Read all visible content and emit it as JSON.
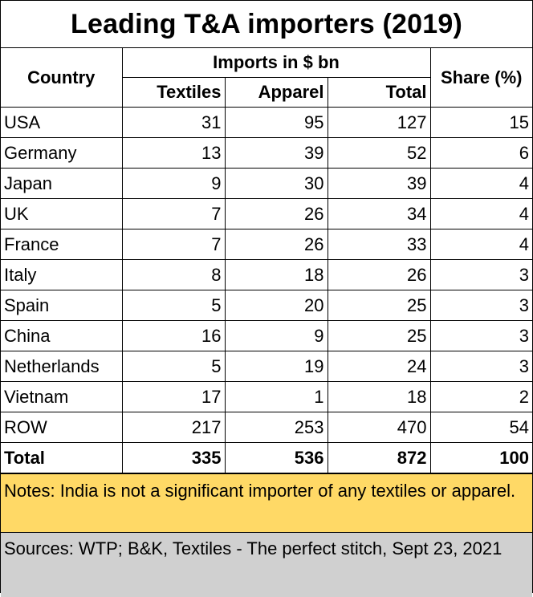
{
  "chart_data": {
    "type": "table",
    "title": "Leading T&A importers (2019)",
    "header": {
      "country": "Country",
      "imports_group": "Imports in $ bn",
      "textiles": "Textiles",
      "apparel": "Apparel",
      "total": "Total",
      "share": "Share (%)"
    },
    "rows": [
      {
        "country": "USA",
        "textiles": "31",
        "apparel": "95",
        "total": "127",
        "share": "15"
      },
      {
        "country": "Germany",
        "textiles": "13",
        "apparel": "39",
        "total": "52",
        "share": "6"
      },
      {
        "country": "Japan",
        "textiles": "9",
        "apparel": "30",
        "total": "39",
        "share": "4"
      },
      {
        "country": "UK",
        "textiles": "7",
        "apparel": "26",
        "total": "34",
        "share": "4"
      },
      {
        "country": "France",
        "textiles": "7",
        "apparel": "26",
        "total": "33",
        "share": "4"
      },
      {
        "country": "Italy",
        "textiles": "8",
        "apparel": "18",
        "total": "26",
        "share": "3"
      },
      {
        "country": "Spain",
        "textiles": "5",
        "apparel": "20",
        "total": "25",
        "share": "3"
      },
      {
        "country": "China",
        "textiles": "16",
        "apparel": "9",
        "total": "25",
        "share": "3"
      },
      {
        "country": "Netherlands",
        "textiles": "5",
        "apparel": "19",
        "total": "24",
        "share": "3"
      },
      {
        "country": "Vietnam",
        "textiles": "17",
        "apparel": "1",
        "total": "18",
        "share": "2"
      },
      {
        "country": "ROW",
        "textiles": "217",
        "apparel": "253",
        "total": "470",
        "share": "54"
      }
    ],
    "total_row": {
      "country": "Total",
      "textiles": "335",
      "apparel": "536",
      "total": "872",
      "share": "100"
    },
    "notes": "Notes: India is not a significant importer of any textiles or apparel.",
    "sources": "Sources: WTP; B&K, Textiles - The perfect stitch, Sept 23, 2021"
  },
  "colors": {
    "notes_bg": "#ffd966",
    "sources_bg": "#d0d0d0"
  }
}
